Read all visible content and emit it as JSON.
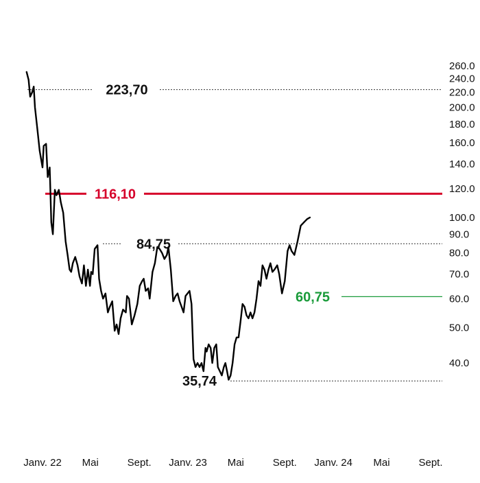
{
  "chart_data": {
    "type": "line",
    "y_scale": "log",
    "y_ticks": [
      "260.0",
      "240.0",
      "220.0",
      "200.0",
      "180.0",
      "160.0",
      "140.0",
      "120.0",
      "100.0",
      "90.0",
      "80.0",
      "70.0",
      "60.0",
      "50.0",
      "40.0"
    ],
    "x_ticks": [
      {
        "label": "Janv. 22",
        "date": "2022-01-01"
      },
      {
        "label": "Mai",
        "date": "2022-05-01"
      },
      {
        "label": "Sept.",
        "date": "2022-09-01"
      },
      {
        "label": "Janv. 23",
        "date": "2023-01-01"
      },
      {
        "label": "Mai",
        "date": "2023-05-01"
      },
      {
        "label": "Sept.",
        "date": "2023-09-01"
      },
      {
        "label": "Janv. 24",
        "date": "2024-01-01"
      },
      {
        "label": "Mai",
        "date": "2024-05-01"
      },
      {
        "label": "Sept.",
        "date": "2024-09-01"
      }
    ],
    "reference_lines": [
      {
        "label": "223,70",
        "value": 223.7,
        "style": "dashed",
        "color": "#333333"
      },
      {
        "label": "116,10",
        "value": 116.1,
        "style": "solid",
        "color": "#d6002a"
      },
      {
        "label": "84,75",
        "value": 84.75,
        "style": "dashed",
        "color": "#333333"
      },
      {
        "label": "60,75",
        "value": 60.75,
        "style": "solid",
        "color": "#1a9b3a"
      },
      {
        "label": "35,74",
        "value": 35.74,
        "style": "dashed",
        "color": "#333333"
      }
    ],
    "series": [
      {
        "color": "#000000",
        "points": [
          [
            "2021-11-22",
            250
          ],
          [
            "2021-11-27",
            238
          ],
          [
            "2021-12-01",
            214
          ],
          [
            "2021-12-06",
            220
          ],
          [
            "2021-12-10",
            228
          ],
          [
            "2021-12-13",
            200
          ],
          [
            "2021-12-19",
            175
          ],
          [
            "2021-12-25",
            152
          ],
          [
            "2022-01-01",
            137
          ],
          [
            "2022-01-04",
            157
          ],
          [
            "2022-01-10",
            159
          ],
          [
            "2022-01-14",
            129
          ],
          [
            "2022-01-19",
            137
          ],
          [
            "2022-01-23",
            97
          ],
          [
            "2022-01-27",
            90
          ],
          [
            "2022-02-01",
            119
          ],
          [
            "2022-02-05",
            115
          ],
          [
            "2022-02-11",
            119
          ],
          [
            "2022-02-16",
            110
          ],
          [
            "2022-02-22",
            103
          ],
          [
            "2022-02-28",
            86
          ],
          [
            "2022-03-05",
            79
          ],
          [
            "2022-03-10",
            72
          ],
          [
            "2022-03-14",
            71
          ],
          [
            "2022-03-18",
            75
          ],
          [
            "2022-03-24",
            78
          ],
          [
            "2022-03-30",
            74
          ],
          [
            "2022-04-04",
            69
          ],
          [
            "2022-04-10",
            66
          ],
          [
            "2022-04-15",
            74
          ],
          [
            "2022-04-20",
            65
          ],
          [
            "2022-04-25",
            72
          ],
          [
            "2022-04-30",
            65
          ],
          [
            "2022-05-03",
            71
          ],
          [
            "2022-05-07",
            70
          ],
          [
            "2022-05-12",
            82
          ],
          [
            "2022-05-19",
            84
          ],
          [
            "2022-05-23",
            68
          ],
          [
            "2022-05-28",
            63
          ],
          [
            "2022-06-02",
            60
          ],
          [
            "2022-06-08",
            62
          ],
          [
            "2022-06-14",
            55
          ],
          [
            "2022-06-19",
            57
          ],
          [
            "2022-06-25",
            59
          ],
          [
            "2022-07-01",
            49
          ],
          [
            "2022-07-06",
            51
          ],
          [
            "2022-07-11",
            48
          ],
          [
            "2022-07-16",
            53
          ],
          [
            "2022-07-22",
            56
          ],
          [
            "2022-07-29",
            55
          ],
          [
            "2022-08-01",
            61
          ],
          [
            "2022-08-06",
            60
          ],
          [
            "2022-08-13",
            51
          ],
          [
            "2022-08-20",
            54
          ],
          [
            "2022-08-27",
            58
          ],
          [
            "2022-09-02",
            65
          ],
          [
            "2022-09-08",
            67
          ],
          [
            "2022-09-12",
            68
          ],
          [
            "2022-09-17",
            63
          ],
          [
            "2022-09-23",
            64
          ],
          [
            "2022-09-27",
            60
          ],
          [
            "2022-10-04",
            71
          ],
          [
            "2022-10-10",
            75
          ],
          [
            "2022-10-16",
            83
          ],
          [
            "2022-10-22",
            82
          ],
          [
            "2022-10-28",
            80
          ],
          [
            "2022-11-03",
            77
          ],
          [
            "2022-11-09",
            79
          ],
          [
            "2022-11-13",
            83
          ],
          [
            "2022-11-19",
            72
          ],
          [
            "2022-11-25",
            59
          ],
          [
            "2022-12-01",
            61
          ],
          [
            "2022-12-06",
            62
          ],
          [
            "2022-12-11",
            59
          ],
          [
            "2022-12-16",
            57
          ],
          [
            "2022-12-21",
            55
          ],
          [
            "2022-12-26",
            61
          ],
          [
            "2022-12-31",
            62
          ],
          [
            "2023-01-05",
            63
          ],
          [
            "2023-01-10",
            58
          ],
          [
            "2023-01-15",
            41
          ],
          [
            "2023-01-20",
            39
          ],
          [
            "2023-01-25",
            40
          ],
          [
            "2023-01-30",
            39
          ],
          [
            "2023-02-04",
            40
          ],
          [
            "2023-02-09",
            38
          ],
          [
            "2023-02-14",
            44
          ],
          [
            "2023-02-17",
            43
          ],
          [
            "2023-02-22",
            45
          ],
          [
            "2023-02-27",
            44
          ],
          [
            "2023-03-03",
            40
          ],
          [
            "2023-03-08",
            44
          ],
          [
            "2023-03-13",
            45
          ],
          [
            "2023-03-17",
            39
          ],
          [
            "2023-03-22",
            38
          ],
          [
            "2023-03-27",
            37
          ],
          [
            "2023-04-01",
            39
          ],
          [
            "2023-04-05",
            40
          ],
          [
            "2023-04-09",
            38
          ],
          [
            "2023-04-13",
            36
          ],
          [
            "2023-04-18",
            37
          ],
          [
            "2023-04-23",
            40
          ],
          [
            "2023-04-28",
            45
          ],
          [
            "2023-05-03",
            47
          ],
          [
            "2023-05-08",
            47
          ],
          [
            "2023-05-13",
            52
          ],
          [
            "2023-05-18",
            58
          ],
          [
            "2023-05-23",
            57
          ],
          [
            "2023-05-28",
            54
          ],
          [
            "2023-06-02",
            53
          ],
          [
            "2023-06-07",
            55
          ],
          [
            "2023-06-12",
            53
          ],
          [
            "2023-06-17",
            55
          ],
          [
            "2023-06-22",
            60
          ],
          [
            "2023-06-27",
            67
          ],
          [
            "2023-07-02",
            65
          ],
          [
            "2023-07-07",
            74
          ],
          [
            "2023-07-12",
            72
          ],
          [
            "2023-07-17",
            68
          ],
          [
            "2023-07-22",
            72
          ],
          [
            "2023-07-27",
            75
          ],
          [
            "2023-08-01",
            71
          ],
          [
            "2023-08-06",
            72
          ],
          [
            "2023-08-13",
            74
          ],
          [
            "2023-08-18",
            70
          ],
          [
            "2023-08-25",
            62
          ],
          [
            "2023-09-01",
            67
          ],
          [
            "2023-09-08",
            81
          ],
          [
            "2023-09-13",
            84
          ],
          [
            "2023-09-18",
            81
          ],
          [
            "2023-09-25",
            79
          ],
          [
            "2023-10-03",
            86
          ],
          [
            "2023-10-11",
            95
          ],
          [
            "2023-10-19",
            97
          ],
          [
            "2023-10-27",
            99
          ],
          [
            "2023-11-03",
            100
          ]
        ]
      }
    ]
  }
}
